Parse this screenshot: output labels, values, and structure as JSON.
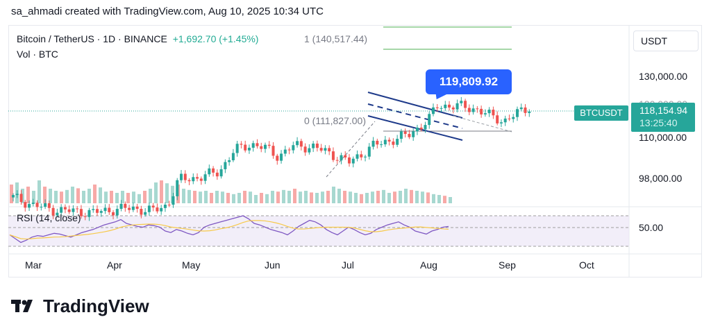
{
  "header": {
    "text": "sa_ahmadi created with TradingView.com, Aug 10, 2025 10:34 UTC"
  },
  "legend": {
    "symbol": "Bitcoin / TetherUS · 1D · BINANCE",
    "change": "+1,692.70 (+1.45%)",
    "volume": "Vol · BTC"
  },
  "fib": {
    "level_1": "1 (140,517.44)",
    "level_0": "0 (111,827.00)",
    "line_color": "#4caf50"
  },
  "currency": "USDT",
  "price_scale": [
    {
      "label": "130,000.00",
      "value": 130000
    },
    {
      "label": "120,000.00",
      "value": 120000
    },
    {
      "label": "110,000.00",
      "value": 110000
    },
    {
      "label": "98,000.00",
      "value": 98000
    }
  ],
  "callout": {
    "text": "119,809.92"
  },
  "last_price": {
    "symbol": "BTCUSDT",
    "price": "118,154.94",
    "countdown": "13:25:40",
    "color": "#26a69a"
  },
  "rsi": {
    "label": "RSI (14, close)",
    "level": "50.00"
  },
  "months": [
    "Mar",
    "Apr",
    "May",
    "Jun",
    "Jul",
    "Aug",
    "Sep",
    "Oct"
  ],
  "brand": {
    "name": "TradingView",
    "logo_icon": "tradingview-logo-icon"
  },
  "colors": {
    "up": "#26a69a",
    "down": "#ef5350",
    "channel": "#1e3a8a",
    "rsi_line": "#7e57c2",
    "rsi_ma": "#f7c948",
    "rsi_band": "#7e57c2"
  },
  "chart_data": {
    "type": "candlestick",
    "title": "Bitcoin / TetherUS · 1D · BINANCE",
    "y_axis": "USDT",
    "y_ticks": [
      98000,
      110000,
      120000,
      130000
    ],
    "x_ticks": [
      "Mar",
      "Apr",
      "May",
      "Jun",
      "Jul",
      "Aug",
      "Sep",
      "Oct"
    ],
    "last_price": 118154.94,
    "change": 1692.7,
    "change_pct": 1.45,
    "annotations": {
      "peak_callout": 119809.92,
      "fib_1": 140517.44,
      "fib_0": 111827.0
    },
    "price_series": [
      {
        "m": 0.0,
        "p": 88500
      },
      {
        "m": 0.25,
        "p": 86000
      },
      {
        "m": 0.5,
        "p": 84500
      },
      {
        "m": 0.75,
        "p": 84000
      },
      {
        "m": 1.0,
        "p": 83500
      },
      {
        "m": 1.25,
        "p": 84500
      },
      {
        "m": 1.5,
        "p": 85000
      },
      {
        "m": 1.75,
        "p": 84000
      },
      {
        "m": 1.95,
        "p": 86000
      },
      {
        "m": 2.1,
        "p": 94500
      },
      {
        "m": 2.35,
        "p": 95000
      },
      {
        "m": 2.6,
        "p": 97000
      },
      {
        "m": 2.8,
        "p": 104000
      },
      {
        "m": 3.0,
        "p": 106000
      },
      {
        "m": 3.2,
        "p": 104500
      },
      {
        "m": 3.35,
        "p": 102000
      },
      {
        "m": 3.55,
        "p": 105500
      },
      {
        "m": 3.8,
        "p": 105000
      },
      {
        "m": 4.0,
        "p": 103000
      },
      {
        "m": 4.25,
        "p": 100000
      },
      {
        "m": 4.55,
        "p": 105500
      },
      {
        "m": 4.8,
        "p": 107500
      },
      {
        "m": 5.0,
        "p": 109000
      },
      {
        "m": 5.25,
        "p": 114000
      },
      {
        "m": 5.35,
        "p": 118500
      },
      {
        "m": 5.6,
        "p": 118500
      },
      {
        "m": 5.85,
        "p": 117500
      },
      {
        "m": 6.0,
        "p": 115500
      },
      {
        "m": 6.2,
        "p": 113500
      },
      {
        "m": 6.4,
        "p": 116500
      },
      {
        "m": 6.52,
        "p": 118150
      }
    ],
    "volume": [
      0.45,
      0.5,
      0.35,
      0.4,
      0.3,
      0.55,
      0.4,
      0.35,
      0.3,
      0.28,
      0.32,
      0.4,
      0.36,
      0.3,
      0.35,
      0.45,
      0.38,
      0.28,
      0.3,
      0.25,
      0.3,
      0.25,
      0.28,
      0.22,
      0.3,
      0.35,
      0.5,
      0.55,
      0.48,
      0.42,
      0.45,
      0.35,
      0.32,
      0.3,
      0.28,
      0.3,
      0.25,
      0.3,
      0.28,
      0.25,
      0.22,
      0.25,
      0.3,
      0.28,
      0.2,
      0.25,
      0.22,
      0.3,
      0.28,
      0.32,
      0.3,
      0.35,
      0.28,
      0.3,
      0.26,
      0.25,
      0.28,
      0.3,
      0.4,
      0.35,
      0.3,
      0.28,
      0.25,
      0.22,
      0.25,
      0.28,
      0.3,
      0.32,
      0.25,
      0.28,
      0.3,
      0.35,
      0.32,
      0.3,
      0.28,
      0.26,
      0.22,
      0.2,
      0.18,
      0.15
    ],
    "rsi": [
      45,
      40,
      35,
      38,
      42,
      44,
      43,
      45,
      47,
      46,
      44,
      42,
      45,
      48,
      50,
      52,
      55,
      58,
      60,
      62,
      65,
      60,
      58,
      56,
      55,
      58,
      57,
      55,
      50,
      48,
      52,
      50,
      47,
      45,
      48,
      55,
      58,
      60,
      62,
      64,
      66,
      68,
      70,
      66,
      60,
      58,
      55,
      52,
      50,
      48,
      45,
      50,
      56,
      60,
      64,
      62,
      58,
      52,
      48,
      45,
      50,
      55,
      52,
      48,
      45,
      47,
      52,
      55,
      58,
      60,
      62,
      58,
      55,
      50,
      48,
      46,
      50,
      52,
      55,
      56
    ]
  }
}
